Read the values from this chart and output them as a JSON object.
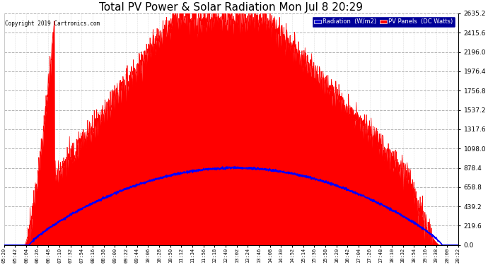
{
  "title": "Total PV Power & Solar Radiation Mon Jul 8 20:29",
  "copyright": "Copyright 2019 Cartronics.com",
  "ylabel_right_ticks": [
    0.0,
    219.6,
    439.2,
    658.8,
    878.4,
    1098.0,
    1317.6,
    1537.2,
    1756.8,
    1976.4,
    2196.0,
    2415.6,
    2635.2
  ],
  "x_tick_labels": [
    "05:20",
    "05:42",
    "06:04",
    "06:26",
    "06:48",
    "07:10",
    "07:32",
    "07:54",
    "08:16",
    "08:38",
    "09:00",
    "09:22",
    "09:44",
    "10:06",
    "10:28",
    "10:50",
    "11:12",
    "11:34",
    "11:56",
    "12:18",
    "12:40",
    "13:02",
    "13:24",
    "13:46",
    "14:08",
    "14:30",
    "14:52",
    "15:14",
    "15:36",
    "15:58",
    "16:20",
    "16:42",
    "17:04",
    "17:26",
    "17:48",
    "18:10",
    "18:32",
    "18:54",
    "19:16",
    "19:38",
    "20:00",
    "20:22"
  ],
  "background_color": "#ffffff",
  "plot_bg_color": "#ffffff",
  "grid_color": "#aaaaaa",
  "pv_fill_color": "#ff0000",
  "radiation_line_color": "#0000ff",
  "title_fontsize": 11,
  "legend_bg_color": "#000099",
  "legend_text_radiation": "Radiation  (W/m2)",
  "legend_text_pv": "PV Panels  (DC Watts)",
  "ymax": 2635.2,
  "ymin": 0.0
}
